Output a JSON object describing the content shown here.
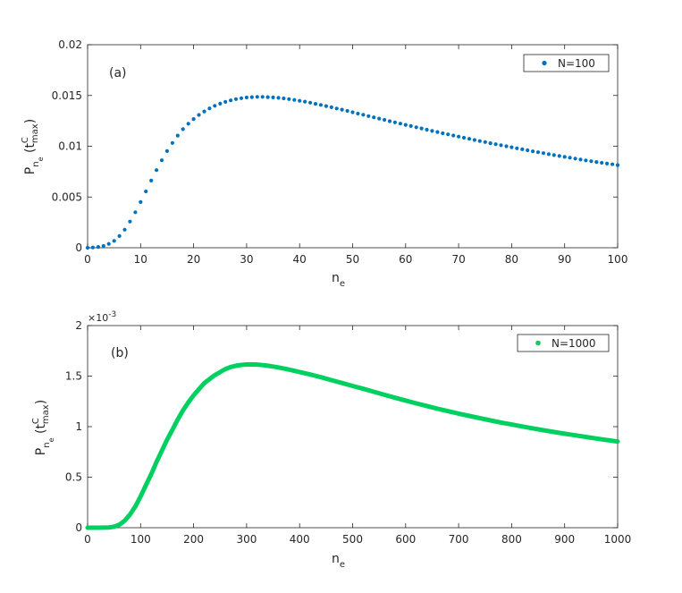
{
  "chart_data": [
    {
      "type": "scatter",
      "panel_label": "(a)",
      "xlabel": "n",
      "xlabel_sub": "e",
      "ylabel_main": "P",
      "ylabel_sub1": "n",
      "ylabel_sub2": "e",
      "ylabel_paren_open": " (t",
      "ylabel_sup": "C",
      "ylabel_sub3": "max",
      "ylabel_paren_close": ")",
      "xlim": [
        0,
        100
      ],
      "ylim": [
        0,
        0.02
      ],
      "xticks": [
        0,
        10,
        20,
        30,
        40,
        50,
        60,
        70,
        80,
        90,
        100
      ],
      "xtick_labels": [
        "0",
        "10",
        "20",
        "30",
        "40",
        "50",
        "60",
        "70",
        "80",
        "90",
        "100"
      ],
      "yticks": [
        0,
        0.005,
        0.01,
        0.015,
        0.02
      ],
      "ytick_labels": [
        "0",
        "0.005",
        "0.01",
        "0.015",
        "0.02"
      ],
      "grid": false,
      "legend_position": "top-right",
      "series": [
        {
          "name": "N=100",
          "color": "#0072BD",
          "marker": "dot",
          "x": [
            0,
            1,
            2,
            3,
            4,
            5,
            6,
            7,
            8,
            9,
            10,
            11,
            12,
            13,
            14,
            15,
            16,
            17,
            18,
            19,
            20,
            21,
            22,
            23,
            24,
            25,
            26,
            27,
            28,
            29,
            30,
            31,
            32,
            33,
            34,
            35,
            36,
            37,
            38,
            39,
            40,
            41,
            42,
            43,
            44,
            45,
            46,
            47,
            48,
            49,
            50,
            51,
            52,
            53,
            54,
            55,
            56,
            57,
            58,
            59,
            60,
            61,
            62,
            63,
            64,
            65,
            66,
            67,
            68,
            69,
            70,
            71,
            72,
            73,
            74,
            75,
            76,
            77,
            78,
            79,
            80,
            81,
            82,
            83,
            84,
            85,
            86,
            87,
            88,
            89,
            90,
            91,
            92,
            93,
            94,
            95,
            96,
            97,
            98,
            99,
            100
          ],
          "y": [
            0,
            3e-05,
            8e-05,
            0.00018,
            0.00038,
            0.00068,
            0.00115,
            0.00178,
            0.00258,
            0.0035,
            0.0045,
            0.00555,
            0.00662,
            0.00765,
            0.00862,
            0.00952,
            0.01033,
            0.01105,
            0.01168,
            0.01222,
            0.01268,
            0.01308,
            0.01343,
            0.01373,
            0.01398,
            0.01419,
            0.01437,
            0.01452,
            0.01464,
            0.01473,
            0.0148,
            0.01484,
            0.01486,
            0.01486,
            0.01484,
            0.01481,
            0.01477,
            0.01471,
            0.01464,
            0.01456,
            0.01448,
            0.01439,
            0.01429,
            0.01418,
            0.01407,
            0.01396,
            0.01384,
            0.01372,
            0.0136,
            0.01348,
            0.01335,
            0.01322,
            0.0131,
            0.01297,
            0.01285,
            0.01272,
            0.0126,
            0.01247,
            0.01235,
            0.01223,
            0.01211,
            0.01199,
            0.01187,
            0.01175,
            0.01163,
            0.01151,
            0.0114,
            0.01128,
            0.01117,
            0.01106,
            0.01095,
            0.01084,
            0.01073,
            0.01062,
            0.01051,
            0.01041,
            0.0103,
            0.0102,
            0.0101,
            0.01,
            0.0099,
            0.0098,
            0.0097,
            0.0096,
            0.0095,
            0.00941,
            0.00932,
            0.00922,
            0.00913,
            0.00904,
            0.00895,
            0.00887,
            0.00878,
            0.00869,
            0.00861,
            0.00853,
            0.00845,
            0.00837,
            0.00829,
            0.00822,
            0.00814
          ]
        }
      ]
    },
    {
      "type": "line",
      "panel_label": "(b)",
      "xlabel": "n",
      "xlabel_sub": "e",
      "ylabel_main": "P",
      "ylabel_sub1": "n",
      "ylabel_sub2": "e",
      "ylabel_paren_open": " (t",
      "ylabel_sup": "C",
      "ylabel_sub3": "max",
      "ylabel_paren_close": ")",
      "exponent_base": "×10",
      "exponent_power": "-3",
      "xlim": [
        0,
        1000
      ],
      "ylim": [
        0,
        2
      ],
      "xticks": [
        0,
        100,
        200,
        300,
        400,
        500,
        600,
        700,
        800,
        900,
        1000
      ],
      "xtick_labels": [
        "0",
        "100",
        "200",
        "300",
        "400",
        "500",
        "600",
        "700",
        "800",
        "900",
        "1000"
      ],
      "yticks": [
        0,
        0.5,
        1,
        1.5,
        2
      ],
      "ytick_labels": [
        "0",
        "0.5",
        "1",
        "1.5",
        "2"
      ],
      "grid": false,
      "legend_position": "top-right",
      "series": [
        {
          "name": "N=1000",
          "color": "#00D060",
          "marker": "dot",
          "x": [
            0,
            20,
            40,
            50,
            60,
            70,
            80,
            90,
            100,
            110,
            120,
            130,
            140,
            150,
            160,
            170,
            180,
            190,
            200,
            210,
            220,
            230,
            240,
            250,
            260,
            270,
            280,
            290,
            300,
            310,
            320,
            330,
            340,
            350,
            360,
            380,
            400,
            420,
            440,
            460,
            480,
            500,
            520,
            540,
            560,
            580,
            600,
            620,
            640,
            660,
            680,
            700,
            720,
            740,
            760,
            780,
            800,
            820,
            840,
            860,
            880,
            900,
            920,
            940,
            960,
            980,
            1000
          ],
          "y": [
            0,
            0,
            0.003,
            0.01,
            0.03,
            0.07,
            0.13,
            0.21,
            0.31,
            0.42,
            0.53,
            0.65,
            0.76,
            0.87,
            0.97,
            1.07,
            1.16,
            1.24,
            1.31,
            1.37,
            1.43,
            1.47,
            1.51,
            1.54,
            1.57,
            1.59,
            1.603,
            1.611,
            1.615,
            1.616,
            1.614,
            1.609,
            1.603,
            1.595,
            1.586,
            1.565,
            1.541,
            1.516,
            1.489,
            1.46,
            1.432,
            1.403,
            1.374,
            1.345,
            1.315,
            1.286,
            1.258,
            1.23,
            1.204,
            1.178,
            1.153,
            1.129,
            1.106,
            1.084,
            1.062,
            1.041,
            1.021,
            1.002,
            0.983,
            0.965,
            0.947,
            0.93,
            0.914,
            0.898,
            0.882,
            0.867,
            0.853
          ]
        }
      ]
    }
  ]
}
